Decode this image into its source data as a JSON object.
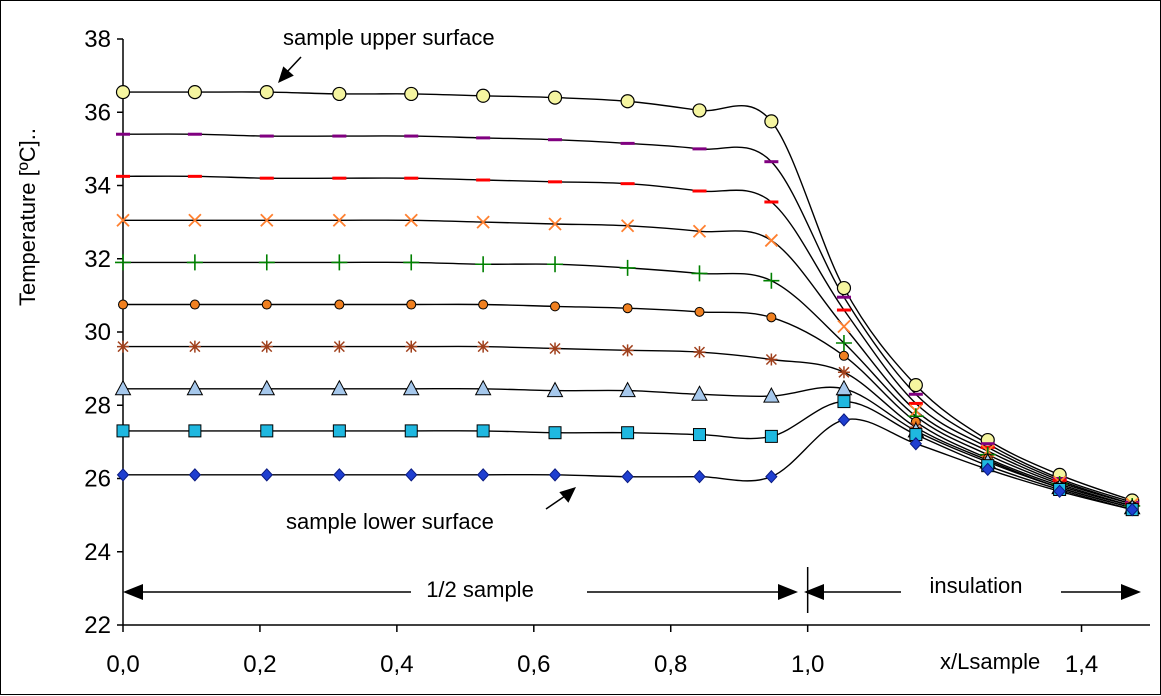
{
  "chart_data": {
    "type": "line",
    "title": "",
    "xlabel": "x/Lsample",
    "ylabel": "Temperature [ºC]..",
    "xlim": [
      0.0,
      1.5
    ],
    "ylim": [
      22,
      38
    ],
    "grid": false,
    "x_ticks": [
      0.0,
      0.2,
      0.4,
      0.6,
      0.8,
      1.0,
      1.4
    ],
    "x_tick_labels": [
      "0,0",
      "0,2",
      "0,4",
      "0,6",
      "0,8",
      "1,0",
      "1,4"
    ],
    "y_ticks": [
      22,
      24,
      26,
      28,
      30,
      32,
      34,
      36,
      38
    ],
    "y_tick_labels": [
      "22",
      "24",
      "26",
      "28",
      "30",
      "32",
      "34",
      "36",
      "38"
    ],
    "x": [
      0.0,
      0.105,
      0.21,
      0.316,
      0.421,
      0.526,
      0.631,
      0.737,
      0.842,
      0.947,
      1.053,
      1.158,
      1.263,
      1.368,
      1.474
    ],
    "series": [
      {
        "marker": "circle",
        "color": "#f5f5a0",
        "stroke": "#000000",
        "values": [
          36.55,
          36.55,
          36.55,
          36.5,
          36.5,
          36.45,
          36.4,
          36.3,
          36.05,
          35.75,
          31.2,
          28.55,
          27.05,
          26.1,
          25.4
        ]
      },
      {
        "marker": "dash",
        "color": "#800080",
        "stroke": "#800080",
        "values": [
          35.4,
          35.4,
          35.35,
          35.35,
          35.35,
          35.3,
          35.25,
          35.15,
          35.0,
          34.65,
          30.95,
          28.3,
          26.95,
          26.0,
          25.35
        ]
      },
      {
        "marker": "dash",
        "color": "#ff0000",
        "stroke": "#ff0000",
        "values": [
          34.25,
          34.25,
          34.2,
          34.2,
          34.2,
          34.15,
          34.1,
          34.05,
          33.85,
          33.55,
          30.6,
          28.05,
          26.85,
          25.95,
          25.3
        ]
      },
      {
        "marker": "x",
        "color": "#ff8030",
        "stroke": "#ff8030",
        "values": [
          33.05,
          33.05,
          33.05,
          33.05,
          33.05,
          33.0,
          32.95,
          32.9,
          32.75,
          32.5,
          30.15,
          27.85,
          26.75,
          25.9,
          25.3
        ]
      },
      {
        "marker": "plus",
        "color": "#008000",
        "stroke": "#008000",
        "values": [
          31.9,
          31.9,
          31.9,
          31.9,
          31.9,
          31.85,
          31.85,
          31.75,
          31.6,
          31.4,
          29.7,
          27.7,
          26.65,
          25.85,
          25.25
        ]
      },
      {
        "marker": "dot",
        "color": "#f08020",
        "stroke": "#000000",
        "values": [
          30.75,
          30.75,
          30.75,
          30.75,
          30.75,
          30.75,
          30.7,
          30.65,
          30.55,
          30.4,
          29.35,
          27.55,
          26.55,
          25.8,
          25.25
        ]
      },
      {
        "marker": "star",
        "color": "#a0401c",
        "stroke": "#a0401c",
        "values": [
          29.6,
          29.6,
          29.6,
          29.6,
          29.6,
          29.6,
          29.55,
          29.5,
          29.45,
          29.25,
          28.9,
          27.4,
          26.5,
          25.75,
          25.2
        ]
      },
      {
        "marker": "triangle",
        "color": "#a6c8ec",
        "stroke": "#000000",
        "values": [
          28.45,
          28.45,
          28.45,
          28.45,
          28.45,
          28.45,
          28.4,
          28.4,
          28.3,
          28.25,
          28.45,
          27.3,
          26.45,
          25.75,
          25.2
        ]
      },
      {
        "marker": "square",
        "color": "#1fb8e0",
        "stroke": "#000000",
        "values": [
          27.3,
          27.3,
          27.3,
          27.3,
          27.3,
          27.3,
          27.25,
          27.25,
          27.2,
          27.15,
          28.1,
          27.2,
          26.35,
          25.7,
          25.15
        ]
      },
      {
        "marker": "diamond",
        "color": "#1f3fd0",
        "stroke": "#0a1a80",
        "values": [
          26.1,
          26.1,
          26.1,
          26.1,
          26.1,
          26.1,
          26.1,
          26.05,
          26.05,
          26.05,
          27.6,
          26.95,
          26.25,
          25.65,
          25.15
        ]
      }
    ],
    "annotations": {
      "upper": "sample upper surface",
      "lower": "sample lower surface",
      "half_sample": "1/2 sample",
      "insulation": "insulation"
    }
  }
}
